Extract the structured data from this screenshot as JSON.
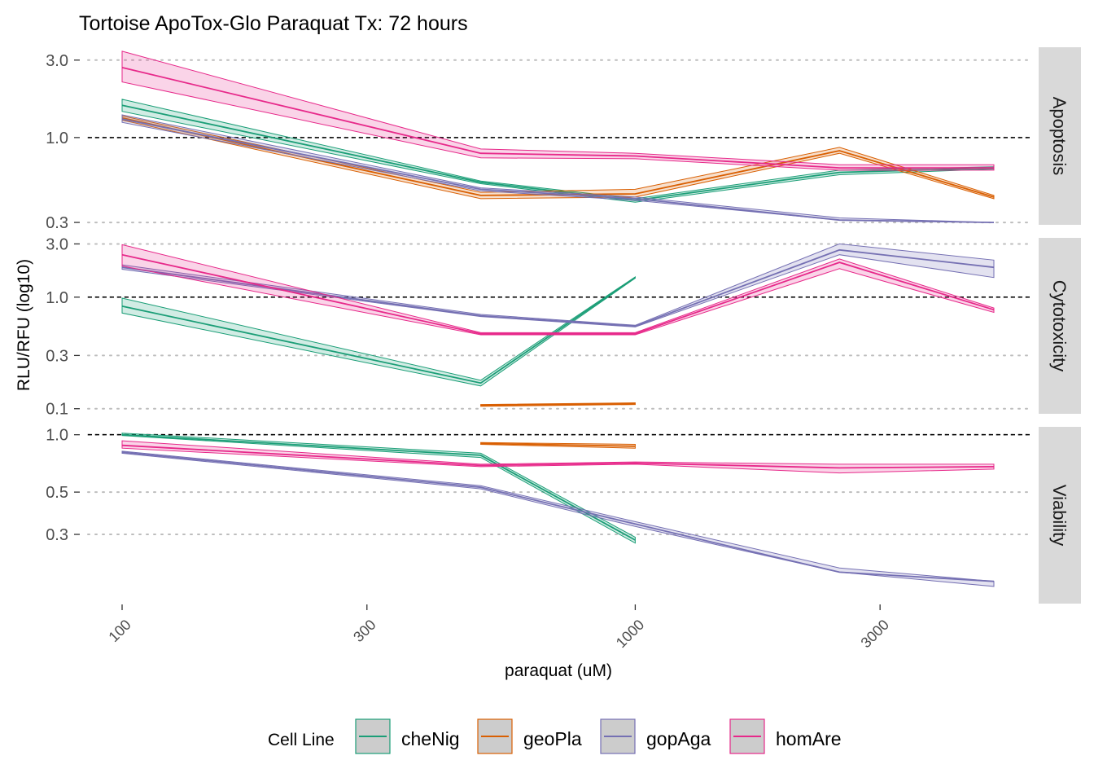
{
  "chart_data": {
    "type": "line",
    "title": "Tortoise ApoTox-Glo Paraquat Tx: 72 hours",
    "xlabel": "paraquat (uM)",
    "ylabel": "RLU/RFU (log10)",
    "x_scale": "log10",
    "x_range": [
      100,
      5000
    ],
    "x_ticks": [
      100,
      300,
      1000,
      3000
    ],
    "x_tick_labels": [
      "100",
      "300",
      "1000",
      "3000"
    ],
    "legend": {
      "title": "Cell Line",
      "placement": "bottom",
      "entries": [
        "cheNig",
        "geoPla",
        "gopAga",
        "homAre"
      ]
    },
    "colors": {
      "cheNig": "#1B9E77",
      "geoPla": "#D95F02",
      "gopAga": "#7570B3",
      "homAre": "#E7298A"
    },
    "panels": [
      {
        "strip": "Apoptosis",
        "y_scale": "log10",
        "ylim": [
          0.29,
          3.6
        ],
        "y_ticks": [
          0.3,
          1.0,
          3.0
        ],
        "y_tick_labels": [
          "0.3",
          "1.0",
          "3.0"
        ],
        "reference_line": 1.0,
        "series": [
          {
            "name": "cheNig",
            "x": [
              100,
              500,
              1000,
              2500,
              5000
            ],
            "y": [
              1.58,
              0.53,
              0.41,
              0.61,
              0.65
            ],
            "lower": [
              1.45,
              0.52,
              0.4,
              0.59,
              0.64
            ],
            "upper": [
              1.72,
              0.54,
              0.42,
              0.63,
              0.66
            ]
          },
          {
            "name": "geoPla",
            "x": [
              100,
              500,
              1000,
              2500,
              5000
            ],
            "y": [
              1.32,
              0.44,
              0.45,
              0.83,
              0.43
            ],
            "lower": [
              1.28,
              0.42,
              0.43,
              0.8,
              0.42
            ],
            "upper": [
              1.36,
              0.46,
              0.48,
              0.87,
              0.44
            ]
          },
          {
            "name": "gopAga",
            "x": [
              100,
              500,
              1000,
              2500,
              5000
            ],
            "y": [
              1.3,
              0.48,
              0.42,
              0.31,
              0.3
            ],
            "lower": [
              1.24,
              0.47,
              0.41,
              0.31,
              0.3
            ],
            "upper": [
              1.38,
              0.49,
              0.43,
              0.32,
              0.3
            ]
          },
          {
            "name": "homAre",
            "x": [
              100,
              500,
              1000,
              2500,
              5000
            ],
            "y": [
              2.7,
              0.8,
              0.77,
              0.65,
              0.65
            ],
            "lower": [
              2.2,
              0.75,
              0.74,
              0.63,
              0.63
            ],
            "upper": [
              3.4,
              0.85,
              0.8,
              0.68,
              0.68
            ]
          }
        ]
      },
      {
        "strip": "Cytotoxicity",
        "y_scale": "log10",
        "ylim": [
          0.09,
          3.4
        ],
        "y_ticks": [
          0.1,
          0.3,
          1.0,
          3.0
        ],
        "y_tick_labels": [
          "0.1",
          "0.3",
          "1.0",
          "3.0"
        ],
        "reference_line": 1.0,
        "series": [
          {
            "name": "cheNig",
            "x": [
              100,
              500,
              1000
            ],
            "y": [
              0.83,
              0.17,
              1.5
            ],
            "lower": [
              0.72,
              0.16,
              1.48
            ],
            "upper": [
              0.98,
              0.18,
              1.52
            ]
          },
          {
            "name": "geoPla",
            "x": [
              500,
              1000
            ],
            "y": [
              0.107,
              0.111
            ],
            "lower": [
              0.105,
              0.109
            ],
            "upper": [
              0.109,
              0.113
            ]
          },
          {
            "name": "gopAga",
            "x": [
              100,
              500,
              1000,
              2500,
              5000
            ],
            "y": [
              1.85,
              0.68,
              0.55,
              2.65,
              1.85
            ],
            "lower": [
              1.78,
              0.67,
              0.54,
              2.4,
              1.5
            ],
            "upper": [
              1.95,
              0.7,
              0.56,
              3.0,
              2.15
            ]
          },
          {
            "name": "homAre",
            "x": [
              100,
              500,
              1000,
              2500,
              5000
            ],
            "y": [
              2.4,
              0.47,
              0.47,
              2.05,
              0.77
            ],
            "lower": [
              1.9,
              0.46,
              0.46,
              1.8,
              0.73
            ],
            "upper": [
              2.95,
              0.48,
              0.48,
              2.2,
              0.8
            ]
          }
        ]
      },
      {
        "strip": "Viability",
        "y_scale": "log10",
        "ylim": [
          0.13,
          1.1
        ],
        "y_ticks": [
          0.3,
          0.5,
          1.0
        ],
        "y_tick_labels": [
          "0.3",
          "0.5",
          "1.0"
        ],
        "reference_line": 1.0,
        "series": [
          {
            "name": "cheNig",
            "x": [
              100,
              500,
              1000
            ],
            "y": [
              1.0,
              0.78,
              0.28
            ],
            "lower": [
              0.99,
              0.76,
              0.27
            ],
            "upper": [
              1.02,
              0.8,
              0.29
            ]
          },
          {
            "name": "geoPla",
            "x": [
              500,
              1000
            ],
            "y": [
              0.9,
              0.87
            ],
            "lower": [
              0.89,
              0.85
            ],
            "upper": [
              0.91,
              0.89
            ]
          },
          {
            "name": "gopAga",
            "x": [
              100,
              500,
              1000,
              2500,
              5000
            ],
            "y": [
              0.81,
              0.53,
              0.34,
              0.19,
              0.17
            ],
            "lower": [
              0.8,
              0.52,
              0.33,
              0.19,
              0.16
            ],
            "upper": [
              0.82,
              0.54,
              0.35,
              0.2,
              0.17
            ]
          },
          {
            "name": "homAre",
            "x": [
              100,
              500,
              1000,
              2500,
              5000
            ],
            "y": [
              0.88,
              0.69,
              0.71,
              0.67,
              0.68
            ],
            "lower": [
              0.85,
              0.68,
              0.7,
              0.63,
              0.66
            ],
            "upper": [
              0.93,
              0.7,
              0.72,
              0.7,
              0.7
            ]
          }
        ]
      }
    ]
  }
}
